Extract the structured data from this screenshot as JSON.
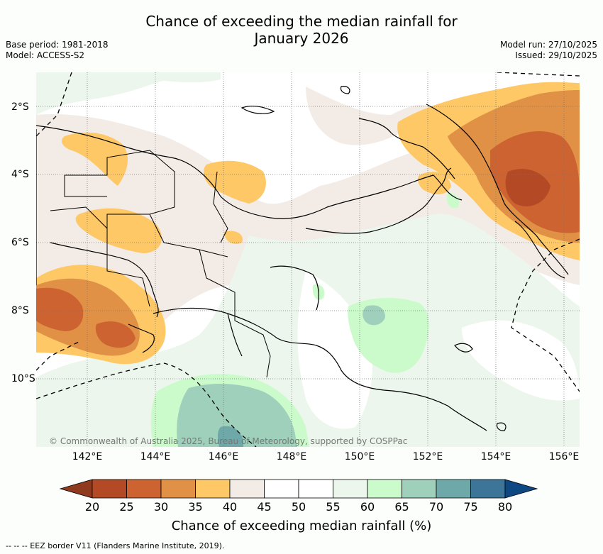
{
  "title": {
    "line1": "Chance of exceeding the median rainfall for",
    "line2": "January 2026"
  },
  "meta": {
    "base_period": "Base period: 1981-2018",
    "model": "Model: ACCESS-S2",
    "model_run": "Model run: 27/10/2025",
    "issued": "Issued: 29/10/2025"
  },
  "map": {
    "copyright": "© Commonwealth of Australia 2025, Bureau of Meteorology, supported by COSPPac",
    "lat_labels": [
      "2°S",
      "4°S",
      "6°S",
      "8°S",
      "10°S"
    ],
    "lon_labels": [
      "142°E",
      "144°E",
      "146°E",
      "148°E",
      "150°E",
      "152°E",
      "154°E",
      "156°E"
    ]
  },
  "colorbar": {
    "ticks": [
      "20",
      "25",
      "30",
      "35",
      "40",
      "45",
      "50",
      "55",
      "60",
      "65",
      "70",
      "75",
      "80"
    ],
    "colors": [
      "#8f3a1f",
      "#b34a25",
      "#cc6330",
      "#e09146",
      "#fdc865",
      "#f3ece6",
      "#ffffff",
      "#ffffff",
      "#ecf6ec",
      "#cbfbcb",
      "#9ed0bc",
      "#6fa8a9",
      "#3d7598",
      "#0d4883"
    ],
    "label": "Chance of exceeding median rainfall (%)"
  },
  "legend": {
    "eez": "--  --  -- EEZ border V11 (Flanders Marine Institute, 2019)."
  }
}
